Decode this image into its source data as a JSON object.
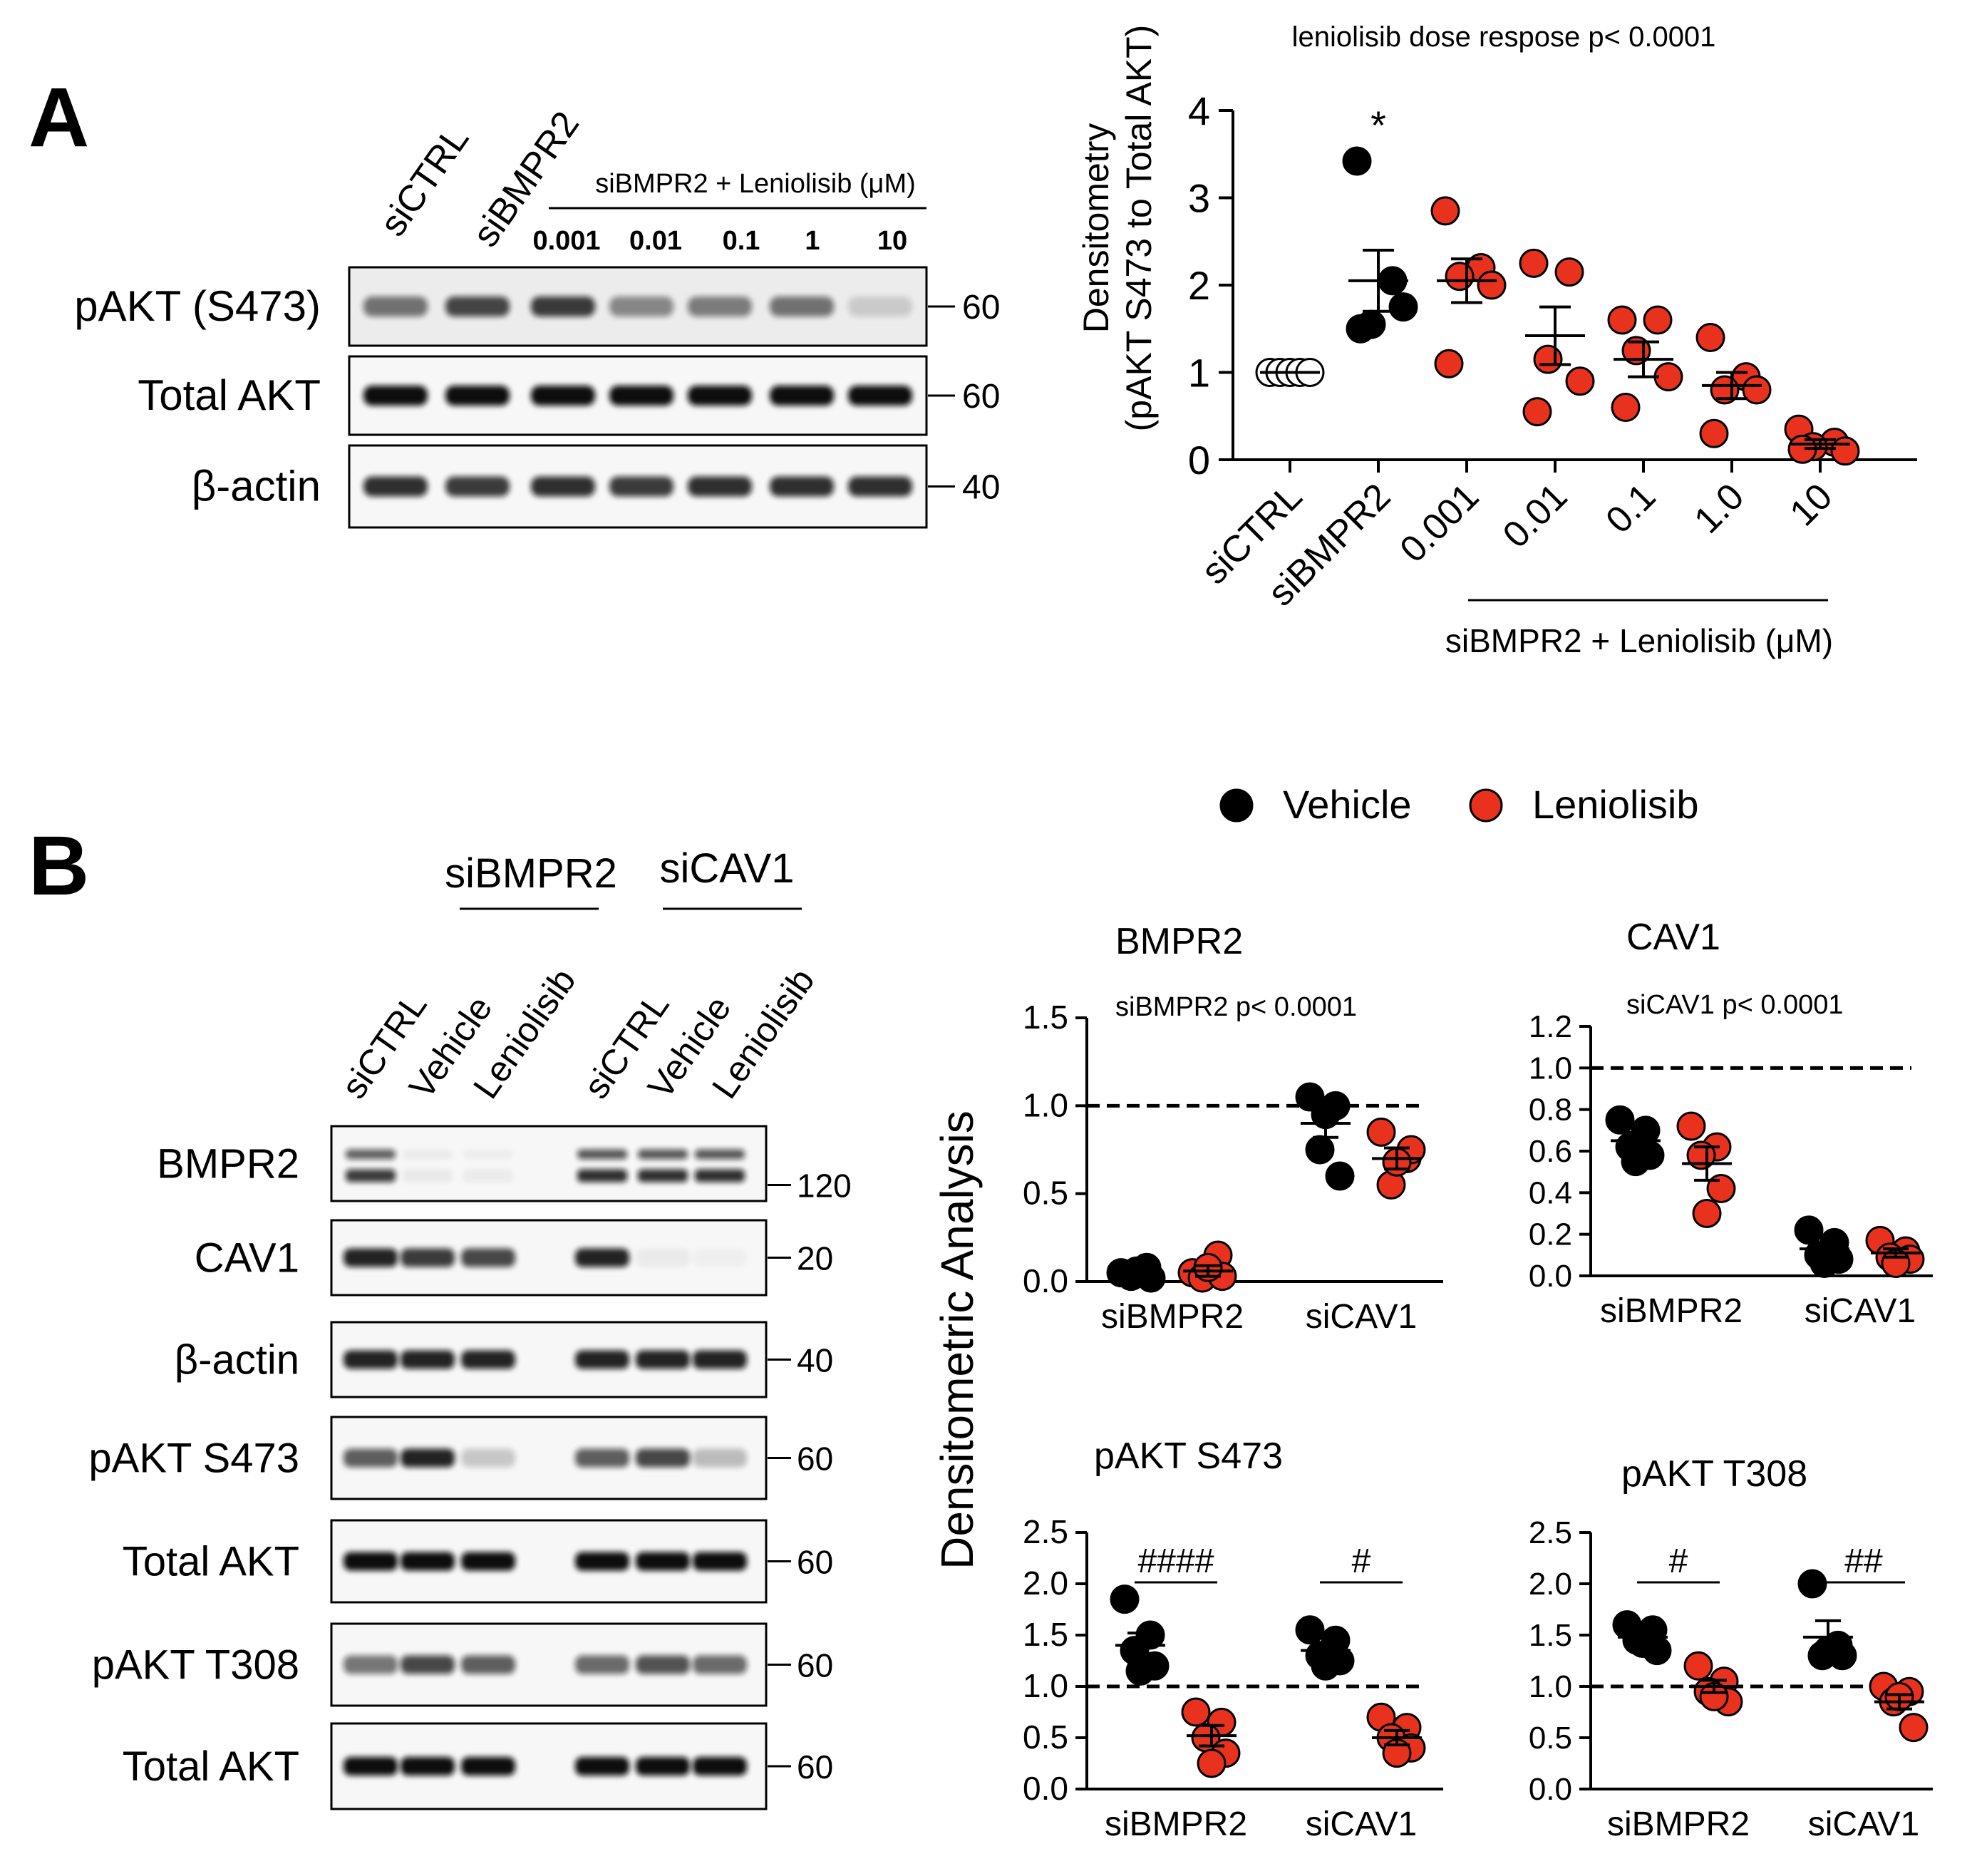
{
  "panels": {
    "a_label": "A",
    "b_label": "B"
  },
  "colors": {
    "vehicle": "#000000",
    "leniolisib": "#e8321e",
    "open": "#ffffff"
  },
  "blot_a": {
    "lanes": [
      "siCTRL",
      "siBMPR2"
    ],
    "group_label": "siBMPR2 + Leniolisib (μM)",
    "doses": [
      "0.001",
      "0.01",
      "0.1",
      "1",
      "10"
    ],
    "rows": [
      {
        "label": "pAKT (S473)",
        "mw": "60"
      },
      {
        "label": "Total AKT",
        "mw": "60"
      },
      {
        "label": "β-actin",
        "mw": "40"
      }
    ]
  },
  "blot_b": {
    "group1": "siBMPR2",
    "group2": "siCAV1",
    "lanes": [
      "siCTRL",
      "Vehicle",
      "Leniolisib",
      "siCTRL",
      "Vehicle",
      "Leniolisib"
    ],
    "rows": [
      {
        "label": "BMPR2",
        "mw": "120"
      },
      {
        "label": "CAV1",
        "mw": "20"
      },
      {
        "label": "β-actin",
        "mw": "40"
      },
      {
        "label": "pAKT S473",
        "mw": "60"
      },
      {
        "label": "Total AKT",
        "mw": "60"
      },
      {
        "label": "pAKT T308",
        "mw": "60"
      },
      {
        "label": "Total AKT",
        "mw": "60"
      }
    ]
  },
  "legend": {
    "vehicle": "Vehicle",
    "leniolisib": "Leniolisib"
  },
  "shared_ylabel_b": "Densitometric Analysis",
  "chart_data": [
    {
      "id": "A_dose",
      "type": "scatter",
      "title": "leniolisib dose respose p< 0.0001",
      "ylabel_line1": "Densitometry",
      "ylabel_line2": "(pAKT S473 to Total AKT)",
      "group_label": "siBMPR2 + Leniolisib (μM)",
      "ylim": [
        0,
        4
      ],
      "yticks": [
        "0",
        "1",
        "2",
        "3",
        "4"
      ],
      "categories": [
        "siCTRL",
        "siBMPR2",
        "0.001",
        "0.01",
        "0.1",
        "1.0",
        "10"
      ],
      "annotation": "*",
      "points": [
        [
          1.0,
          1.0,
          1.0,
          1.0,
          1.0
        ],
        [
          3.42,
          2.05,
          1.55,
          1.75,
          1.5
        ],
        [
          2.85,
          2.2,
          2.1,
          2.0,
          1.1
        ],
        [
          2.25,
          2.15,
          1.15,
          0.9,
          0.55
        ],
        [
          1.6,
          1.6,
          1.25,
          0.95,
          0.6
        ],
        [
          1.4,
          0.95,
          0.8,
          0.8,
          0.3
        ],
        [
          0.35,
          0.2,
          0.15,
          0.1,
          0.12
        ]
      ],
      "means": [
        1.0,
        2.05,
        2.05,
        1.42,
        1.15,
        0.85,
        0.18
      ],
      "sems": [
        0.0,
        0.35,
        0.25,
        0.33,
        0.2,
        0.15,
        0.05
      ],
      "point_colors": [
        "open",
        "vehicle",
        "leniolisib",
        "leniolisib",
        "leniolisib",
        "leniolisib",
        "leniolisib"
      ]
    },
    {
      "id": "B_BMPR2",
      "type": "scatter",
      "title": "BMPR2",
      "subtitle": "siBMPR2 p< 0.0001",
      "ylim": [
        0,
        1.5
      ],
      "yticks": [
        "0.0",
        "0.5",
        "1.0",
        "1.5"
      ],
      "categories": [
        "siBMPR2",
        "siCAV1"
      ],
      "reference_line": 1.0,
      "series": [
        {
          "name": "Vehicle",
          "color": "vehicle",
          "values": [
            [
              0.05,
              0.08,
              0.03,
              0.02,
              0.06
            ],
            [
              1.05,
              1.0,
              0.75,
              0.6,
              0.95
            ]
          ],
          "mean": [
            0.05,
            0.9
          ],
          "sem": [
            0.01,
            0.08
          ]
        },
        {
          "name": "Leniolisib",
          "color": "leniolisib",
          "values": [
            [
              0.05,
              0.15,
              0.02,
              0.03,
              0.08
            ],
            [
              0.85,
              0.7,
              0.55,
              0.75,
              0.68
            ]
          ],
          "mean": [
            0.06,
            0.7
          ],
          "sem": [
            0.03,
            0.06
          ]
        }
      ],
      "brackets": []
    },
    {
      "id": "B_CAV1",
      "type": "scatter",
      "title": "CAV1",
      "subtitle": "siCAV1 p< 0.0001",
      "ylim": [
        0,
        1.2
      ],
      "yticks": [
        "0.0",
        "0.2",
        "0.4",
        "0.6",
        "0.8",
        "1.0",
        "1.2"
      ],
      "categories": [
        "siBMPR2",
        "siCAV1"
      ],
      "reference_line": 1.0,
      "series": [
        {
          "name": "Vehicle",
          "color": "vehicle",
          "values": [
            [
              0.75,
              0.7,
              0.62,
              0.58,
              0.55
            ],
            [
              0.22,
              0.16,
              0.1,
              0.08,
              0.06
            ]
          ],
          "mean": [
            0.65,
            0.13
          ],
          "sem": [
            0.04,
            0.03
          ]
        },
        {
          "name": "Leniolisib",
          "color": "leniolisib",
          "values": [
            [
              0.72,
              0.62,
              0.58,
              0.42,
              0.3
            ],
            [
              0.17,
              0.12,
              0.09,
              0.08,
              0.06
            ]
          ],
          "mean": [
            0.54,
            0.11
          ],
          "sem": [
            0.08,
            0.02
          ]
        }
      ],
      "brackets": []
    },
    {
      "id": "B_pAKT_S473",
      "type": "scatter",
      "title": "pAKT S473",
      "ylim": [
        0,
        2.5
      ],
      "yticks": [
        "0.0",
        "0.5",
        "1.0",
        "1.5",
        "2.0",
        "2.5"
      ],
      "categories": [
        "siBMPR2",
        "siCAV1"
      ],
      "reference_line": 1.0,
      "series": [
        {
          "name": "Vehicle",
          "color": "vehicle",
          "values": [
            [
              1.85,
              1.5,
              1.35,
              1.2,
              1.15
            ],
            [
              1.55,
              1.45,
              1.3,
              1.25,
              1.2
            ]
          ],
          "mean": [
            1.4,
            1.35
          ],
          "sem": [
            0.12,
            0.07
          ]
        },
        {
          "name": "Leniolisib",
          "color": "leniolisib",
          "values": [
            [
              0.75,
              0.65,
              0.5,
              0.35,
              0.25
            ],
            [
              0.7,
              0.6,
              0.5,
              0.4,
              0.35
            ]
          ],
          "mean": [
            0.52,
            0.5
          ],
          "sem": [
            0.1,
            0.07
          ]
        }
      ],
      "brackets": [
        "####",
        "#"
      ]
    },
    {
      "id": "B_pAKT_T308",
      "type": "scatter",
      "title": "pAKT T308",
      "ylim": [
        0,
        2.5
      ],
      "yticks": [
        "0.0",
        "0.5",
        "1.0",
        "1.5",
        "2.0",
        "2.5"
      ],
      "categories": [
        "siBMPR2",
        "siCAV1"
      ],
      "reference_line": 1.0,
      "series": [
        {
          "name": "Vehicle",
          "color": "vehicle",
          "values": [
            [
              1.6,
              1.55,
              1.45,
              1.35,
              1.42
            ],
            [
              2.0,
              1.4,
              1.3,
              1.3,
              1.35
            ]
          ],
          "mean": [
            1.48,
            1.48
          ],
          "sem": [
            0.05,
            0.16
          ]
        },
        {
          "name": "Leniolisib",
          "color": "leniolisib",
          "values": [
            [
              1.2,
              1.05,
              0.95,
              0.85,
              0.9
            ],
            [
              1.0,
              0.95,
              0.85,
              0.6,
              0.9
            ]
          ],
          "mean": [
            1.0,
            0.85
          ],
          "sem": [
            0.06,
            0.07
          ]
        }
      ],
      "brackets": [
        "#",
        "##"
      ]
    }
  ]
}
